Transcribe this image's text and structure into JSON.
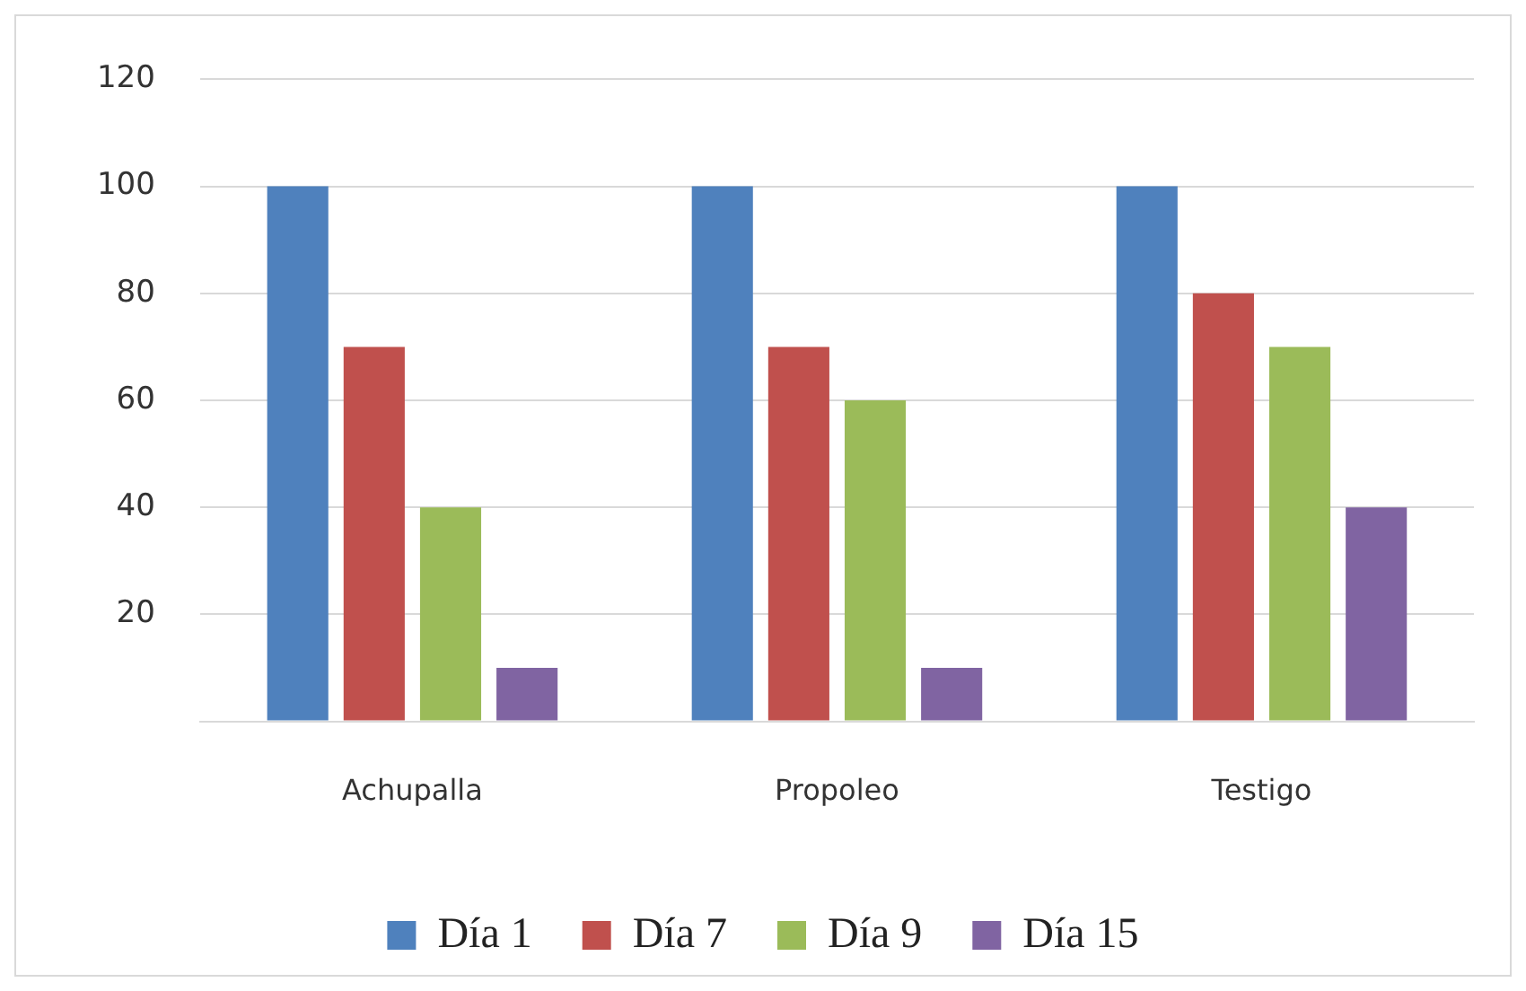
{
  "chart_data": {
    "type": "bar",
    "categories": [
      "Achupalla",
      "Propoleo",
      "Testigo"
    ],
    "series": [
      {
        "name": "Día 1",
        "color": "#4f81bd",
        "values": [
          100,
          100,
          100
        ]
      },
      {
        "name": "Día 7",
        "color": "#c0504d",
        "values": [
          70,
          70,
          80
        ]
      },
      {
        "name": "Día 9",
        "color": "#9bbb59",
        "values": [
          40,
          60,
          70
        ]
      },
      {
        "name": "Día 15",
        "color": "#8064a2",
        "values": [
          10,
          10,
          40
        ]
      }
    ],
    "ylim": [
      0,
      120
    ],
    "yticks": [
      {
        "value": 0,
        "label": null
      },
      20,
      40,
      60,
      80,
      100,
      120
    ],
    "grid": "y",
    "legend": "bottom"
  }
}
